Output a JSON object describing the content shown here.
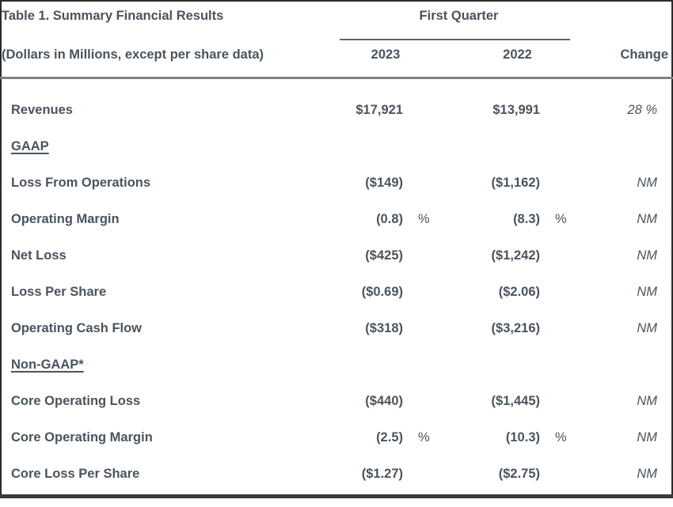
{
  "table": {
    "title": "Table 1. Summary Financial Results",
    "subtitle": "(Dollars in Millions, except per share data)",
    "group_header": "First Quarter",
    "year_columns": [
      "2023",
      "2022"
    ],
    "change_header": "Change",
    "rows": [
      {
        "type": "data",
        "label": "Revenues",
        "y2023": "$17,921",
        "y2023_unit": "",
        "y2022": "$13,991",
        "y2022_unit": "",
        "change": "28 %"
      },
      {
        "type": "section",
        "label": "GAAP"
      },
      {
        "type": "data",
        "label": "Loss From Operations",
        "y2023": "($149)",
        "y2023_unit": "",
        "y2022": "($1,162)",
        "y2022_unit": "",
        "change": "NM"
      },
      {
        "type": "data",
        "label": "Operating Margin",
        "y2023": "(0.8)",
        "y2023_unit": "%",
        "y2022": "(8.3)",
        "y2022_unit": "%",
        "change": "NM"
      },
      {
        "type": "data",
        "label": "Net Loss",
        "y2023": "($425)",
        "y2023_unit": "",
        "y2022": "($1,242)",
        "y2022_unit": "",
        "change": "NM"
      },
      {
        "type": "data",
        "label": "Loss Per Share",
        "y2023": "($0.69)",
        "y2023_unit": "",
        "y2022": "($2.06)",
        "y2022_unit": "",
        "change": "NM"
      },
      {
        "type": "data",
        "label": "Operating Cash Flow",
        "y2023": "($318)",
        "y2023_unit": "",
        "y2022": "($3,216)",
        "y2022_unit": "",
        "change": "NM"
      },
      {
        "type": "section",
        "label": "Non-GAAP*"
      },
      {
        "type": "data",
        "label": "Core Operating Loss",
        "y2023": "($440)",
        "y2023_unit": "",
        "y2022": "($1,445)",
        "y2022_unit": "",
        "change": "NM"
      },
      {
        "type": "data",
        "label": "Core Operating Margin",
        "y2023": "(2.5)",
        "y2023_unit": "%",
        "y2022": "(10.3)",
        "y2022_unit": "%",
        "change": "NM"
      },
      {
        "type": "data",
        "label": "Core Loss Per Share",
        "y2023": "($1.27)",
        "y2023_unit": "",
        "y2022": "($2.75)",
        "y2022_unit": "",
        "change": "NM"
      }
    ]
  },
  "colors": {
    "text": "#4a545e",
    "divider": "#7f8184",
    "group_underline": "#616366",
    "outer_border": "#2b2b2b",
    "bottom_rule": "#3a3a3a",
    "background": "#ffffff"
  }
}
